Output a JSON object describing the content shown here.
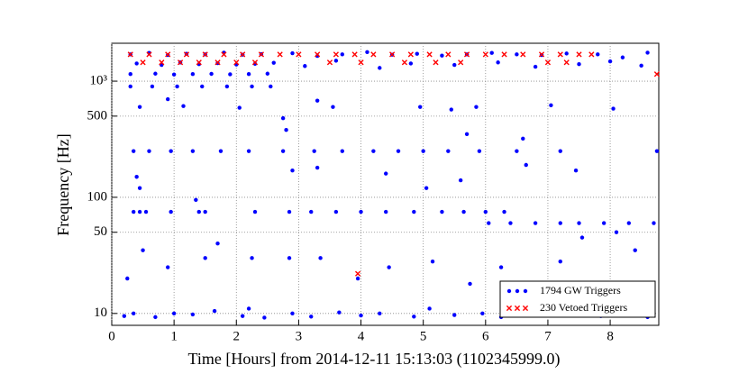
{
  "chart_data": {
    "type": "scatter",
    "xlabel": "Time [Hours] from 2014-12-11 15:13:03 (1102345999.0)",
    "ylabel": "Frequency [Hz]",
    "xlim": [
      0,
      8.78
    ],
    "ylim": [
      7.9,
      2120
    ],
    "xticks": [
      0,
      1,
      2,
      3,
      4,
      5,
      6,
      7,
      8
    ],
    "yticks": [
      10,
      50,
      100,
      500,
      {
        "value": 1000,
        "label": "10³"
      }
    ],
    "log_y": true,
    "grid": true,
    "legend": "lower right",
    "series": [
      {
        "name": "1794 GW Triggers",
        "color": "#0000ff",
        "marker": "dot",
        "x": [
          0.3,
          0.6,
          0.9,
          1.2,
          1.5,
          1.8,
          2.1,
          2.4,
          2.9,
          3.3,
          3.7,
          4.1,
          4.5,
          4.9,
          5.3,
          5.7,
          6.1,
          6.5,
          6.9,
          7.3,
          7.8,
          8.2,
          8.6,
          0.4,
          0.8,
          1.1,
          1.4,
          1.7,
          2.0,
          2.3,
          2.6,
          3.1,
          3.6,
          4.3,
          4.8,
          5.5,
          6.2,
          6.8,
          7.5,
          8.0,
          8.5,
          0.3,
          0.7,
          1.0,
          1.3,
          1.6,
          1.9,
          2.2,
          2.5,
          0.3,
          0.65,
          1.05,
          1.45,
          1.85,
          2.25,
          2.55,
          0.45,
          1.15,
          2.05,
          2.75,
          3.55,
          4.95,
          5.45,
          5.85,
          7.05,
          8.05,
          0.9,
          2.8,
          3.3,
          5.7,
          6.6,
          0.35,
          0.6,
          0.95,
          1.3,
          1.75,
          2.2,
          2.75,
          3.25,
          3.7,
          4.2,
          4.6,
          5.0,
          5.4,
          5.9,
          6.5,
          7.2,
          8.75,
          0.4,
          0.45,
          2.9,
          3.3,
          4.4,
          5.6,
          6.65,
          7.45,
          5.05,
          1.35,
          0.35,
          0.45,
          0.55,
          0.95,
          1.4,
          1.5,
          2.3,
          2.85,
          3.2,
          3.6,
          4.0,
          4.4,
          4.85,
          5.3,
          5.65,
          6.0,
          6.3,
          6.05,
          6.4,
          6.8,
          7.2,
          7.5,
          7.9,
          8.3,
          8.7,
          0.25,
          0.5,
          0.9,
          1.5,
          1.7,
          2.25,
          2.85,
          3.35,
          3.95,
          4.45,
          5.15,
          5.75,
          6.25,
          7.2,
          7.55,
          8.1,
          8.4,
          0.2,
          0.35,
          0.7,
          1.0,
          1.3,
          1.65,
          2.1,
          2.2,
          2.45,
          2.9,
          3.2,
          3.65,
          4.0,
          4.3,
          4.85,
          5.1,
          5.5,
          5.95,
          6.25,
          6.6,
          7.0,
          7.4,
          7.85,
          8.25,
          8.6
        ],
        "values": [
          1700,
          1750,
          1680,
          1720,
          1700,
          1760,
          1690,
          1710,
          1740,
          1650,
          1700,
          1780,
          1690,
          1720,
          1660,
          1700,
          1750,
          1700,
          1680,
          1730,
          1700,
          1600,
          1760,
          1420,
          1380,
          1450,
          1400,
          1430,
          1390,
          1410,
          1440,
          1350,
          1500,
          1300,
          1420,
          1380,
          1450,
          1330,
          1400,
          1480,
          1360,
          1150,
          1160,
          1140,
          1150,
          1155,
          1145,
          1150,
          1160,
          900,
          900,
          900,
          900,
          900,
          900,
          900,
          600,
          610,
          590,
          480,
          600,
          600,
          570,
          600,
          620,
          580,
          700,
          380,
          680,
          350,
          320,
          250,
          250,
          250,
          250,
          250,
          250,
          250,
          250,
          250,
          250,
          250,
          250,
          250,
          250,
          250,
          250,
          250,
          150,
          120,
          170,
          180,
          160,
          140,
          190,
          170,
          120,
          95,
          75,
          75,
          75,
          75,
          75,
          75,
          75,
          75,
          75,
          75,
          75,
          75,
          75,
          75,
          75,
          75,
          75,
          60,
          60,
          60,
          60,
          60,
          60,
          60,
          60,
          20,
          35,
          25,
          30,
          40,
          30,
          30,
          30,
          20,
          25,
          28,
          18,
          25,
          28,
          45,
          50,
          35,
          9.5,
          10,
          9.3,
          10,
          9.8,
          10.5,
          9.5,
          11,
          9.2,
          10,
          9.4,
          10.2,
          9.6,
          10,
          9.4,
          11,
          9.7,
          10,
          9.3,
          10.4,
          9.6,
          10,
          9.5,
          10,
          9.3
        ]
      },
      {
        "name": "230 Vetoed Triggers",
        "color": "#ff0000",
        "marker": "x",
        "x": [
          0.3,
          0.6,
          0.9,
          1.2,
          1.5,
          1.8,
          2.1,
          2.4,
          2.7,
          3.0,
          3.3,
          3.6,
          3.9,
          4.2,
          4.5,
          4.8,
          5.1,
          5.4,
          5.7,
          6.0,
          6.3,
          6.6,
          6.9,
          7.2,
          7.5,
          7.7,
          0.5,
          0.8,
          1.1,
          1.4,
          1.7,
          2.0,
          2.3,
          3.5,
          4.0,
          4.7,
          5.2,
          5.6,
          7.0,
          7.3,
          3.95,
          8.75
        ],
        "values": [
          1700,
          1700,
          1700,
          1700,
          1700,
          1700,
          1700,
          1700,
          1700,
          1700,
          1700,
          1700,
          1700,
          1700,
          1700,
          1700,
          1700,
          1700,
          1700,
          1700,
          1700,
          1700,
          1700,
          1700,
          1700,
          1700,
          1450,
          1450,
          1450,
          1450,
          1450,
          1450,
          1450,
          1450,
          1450,
          1450,
          1450,
          1450,
          1450,
          1450,
          22,
          1150
        ]
      }
    ]
  }
}
